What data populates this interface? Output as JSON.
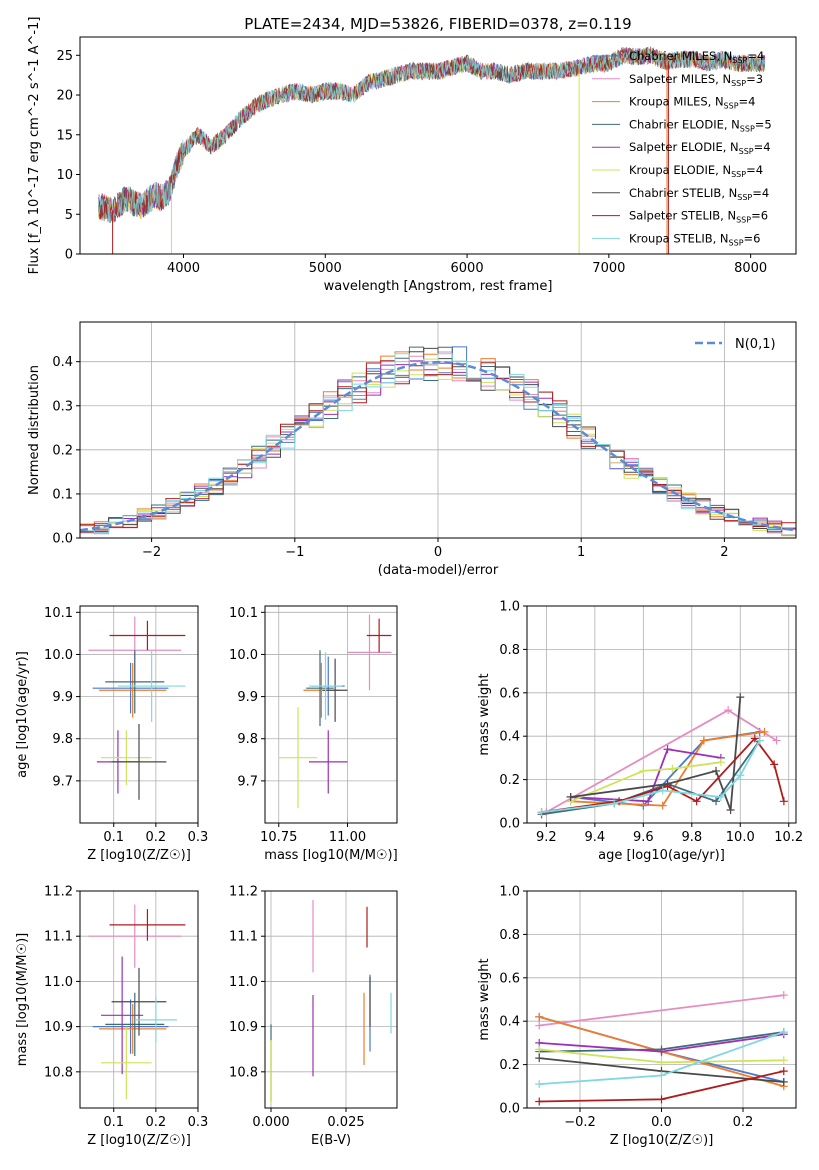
{
  "title": "PLATE=2434, MJD=53826, FIBERID=0378, z=0.119",
  "colors": [
    "#4878cf",
    "#e68cc0",
    "#ee7d2e",
    "#3f6b7a",
    "#9b30b4",
    "#cde35a",
    "#4a4a4a",
    "#b01c1c",
    "#7fd8dd"
  ],
  "models": [
    {
      "name": "Chabrier MILES",
      "nssp": "4"
    },
    {
      "name": "Salpeter MILES",
      "nssp": "3"
    },
    {
      "name": "Kroupa MILES",
      "nssp": "4"
    },
    {
      "name": "Chabrier ELODIE",
      "nssp": "5"
    },
    {
      "name": "Salpeter ELODIE",
      "nssp": "4"
    },
    {
      "name": "Kroupa ELODIE",
      "nssp": "4"
    },
    {
      "name": "Chabrier STELIB",
      "nssp": "4"
    },
    {
      "name": "Salpeter STELIB",
      "nssp": "6"
    },
    {
      "name": "Kroupa STELIB",
      "nssp": "6"
    }
  ],
  "labels": {
    "spec_x": "wavelength [Angstrom, rest frame]",
    "spec_y": "Flux [f_λ 10^-17 erg cm^-2 s^-1 A^-1]",
    "hist_x": "(data-model)/error",
    "hist_y": "Normed distribution",
    "hist_legend": "N(0,1)",
    "age_y": "age  [log10(age/yr)]",
    "z_x": "Z [log10(Z/Z☉)]",
    "mass_x": "mass [log10(M/M☉)]",
    "mw_y": "mass weight",
    "age_x": "age  [log10(age/yr)]",
    "mass_y": "mass [log10(M/M☉)]",
    "ebv_x": "E(B-V)"
  },
  "chart_data": [
    {
      "id": "spectrum",
      "type": "line",
      "xlim": [
        3270,
        8320
      ],
      "ylim": [
        0,
        27.3
      ],
      "xticks": [
        4000,
        5000,
        6000,
        7000,
        8000
      ],
      "yticks": [
        0,
        5,
        10,
        15,
        20,
        25
      ],
      "anchors": [
        [
          3400,
          6
        ],
        [
          3500,
          5.5
        ],
        [
          3600,
          7
        ],
        [
          3700,
          6
        ],
        [
          3800,
          7.5
        ],
        [
          3850,
          7
        ],
        [
          3900,
          8
        ],
        [
          3950,
          11
        ],
        [
          4000,
          13
        ],
        [
          4100,
          15
        ],
        [
          4200,
          13.5
        ],
        [
          4300,
          15
        ],
        [
          4400,
          17
        ],
        [
          4500,
          18.5
        ],
        [
          4600,
          19.5
        ],
        [
          4700,
          20
        ],
        [
          4800,
          20.5
        ],
        [
          4900,
          20
        ],
        [
          5000,
          20.5
        ],
        [
          5100,
          20.5
        ],
        [
          5200,
          20
        ],
        [
          5300,
          21.5
        ],
        [
          5400,
          22
        ],
        [
          5500,
          22.5
        ],
        [
          5600,
          23
        ],
        [
          5700,
          23
        ],
        [
          5800,
          23
        ],
        [
          5900,
          23.5
        ],
        [
          6000,
          24
        ],
        [
          6100,
          23
        ],
        [
          6200,
          23
        ],
        [
          6300,
          22.5
        ],
        [
          6400,
          23
        ],
        [
          6500,
          23
        ],
        [
          6600,
          23
        ],
        [
          6700,
          23.2
        ],
        [
          6800,
          23.5
        ],
        [
          6900,
          24
        ],
        [
          7000,
          24
        ],
        [
          7100,
          25
        ],
        [
          7200,
          24.8
        ],
        [
          7300,
          25
        ],
        [
          7400,
          24.2
        ],
        [
          7500,
          24.5
        ],
        [
          7600,
          24.5
        ],
        [
          7700,
          24
        ],
        [
          7800,
          24.5
        ],
        [
          7900,
          24
        ],
        [
          8000,
          24
        ],
        [
          8100,
          24
        ]
      ],
      "range": [
        3400,
        8100
      ]
    },
    {
      "id": "residuals",
      "type": "step",
      "xlim": [
        -2.5,
        2.5
      ],
      "ylim": [
        0,
        0.49
      ],
      "xticks": [
        -2,
        -1,
        0,
        1,
        2
      ],
      "yticks": [
        0.0,
        0.1,
        0.2,
        0.3,
        0.4
      ],
      "bin": 0.1,
      "sigma": 1,
      "gauss_peak": 0.3989
    },
    {
      "id": "z_age",
      "type": "errorbar",
      "xlim": [
        0.02,
        0.3
      ],
      "ylim": [
        9.6,
        10.115
      ],
      "xticks": [
        0.1,
        0.2,
        0.3
      ],
      "yticks": [
        9.7,
        9.8,
        9.9,
        10.0,
        10.1
      ],
      "points": [
        [
          0.14,
          9.92,
          0.09,
          0.06
        ],
        [
          0.15,
          10.01,
          0.11,
          0.08
        ],
        [
          0.145,
          9.915,
          0.08,
          0.065
        ],
        [
          0.15,
          9.935,
          0.07,
          0.075
        ],
        [
          0.11,
          9.745,
          0.05,
          0.075
        ],
        [
          0.13,
          9.755,
          0.06,
          0.065
        ],
        [
          0.16,
          9.745,
          0.065,
          0.09
        ],
        [
          0.18,
          10.045,
          0.09,
          0.035
        ],
        [
          0.19,
          9.925,
          0.08,
          0.085
        ]
      ]
    },
    {
      "id": "mass_age",
      "type": "errorbar",
      "xlim": [
        10.7,
        11.18
      ],
      "ylim": [
        9.6,
        10.115
      ],
      "xticks": [
        10.75,
        11.0
      ],
      "yticks": [
        9.7,
        9.8,
        9.9,
        10.0,
        10.1
      ],
      "points": [
        [
          10.93,
          9.925,
          0.06,
          0.07
        ],
        [
          11.08,
          10.005,
          0.08,
          0.09
        ],
        [
          10.905,
          9.915,
          0.065,
          0.065
        ],
        [
          10.9,
          9.92,
          0.05,
          0.09
        ],
        [
          10.93,
          9.745,
          0.07,
          0.075
        ],
        [
          10.82,
          9.755,
          0.07,
          0.12
        ],
        [
          10.955,
          9.915,
          0.045,
          0.075
        ],
        [
          11.115,
          10.045,
          0.045,
          0.04
        ],
        [
          10.92,
          9.925,
          0.06,
          0.08
        ]
      ]
    },
    {
      "id": "age_weight",
      "type": "line",
      "xlim": [
        9.12,
        10.23
      ],
      "ylim": [
        0,
        1
      ],
      "xticks": [
        9.2,
        9.4,
        9.6,
        9.8,
        10.0,
        10.2
      ],
      "yticks": [
        0,
        0.2,
        0.4,
        0.6,
        0.8,
        1.0
      ],
      "series": [
        [
          [
            9.3,
            0.12
          ],
          [
            9.6,
            0.08
          ],
          [
            9.85,
            0.38
          ],
          [
            10.08,
            0.42
          ]
        ],
        [
          [
            9.2,
            0.05
          ],
          [
            9.95,
            0.52
          ],
          [
            10.15,
            0.38
          ]
        ],
        [
          [
            9.3,
            0.1
          ],
          [
            9.68,
            0.08
          ],
          [
            9.85,
            0.38
          ],
          [
            10.1,
            0.42
          ]
        ],
        [
          [
            9.18,
            0.04
          ],
          [
            9.48,
            0.09
          ],
          [
            9.7,
            0.18
          ],
          [
            9.9,
            0.1
          ],
          [
            10.08,
            0.38
          ]
        ],
        [
          [
            9.3,
            0.12
          ],
          [
            9.62,
            0.1
          ],
          [
            9.7,
            0.34
          ],
          [
            9.92,
            0.3
          ]
        ],
        [
          [
            9.3,
            0.1
          ],
          [
            9.6,
            0.24
          ],
          [
            9.72,
            0.25
          ],
          [
            9.92,
            0.28
          ]
        ],
        [
          [
            9.3,
            0.12
          ],
          [
            9.7,
            0.18
          ],
          [
            9.9,
            0.24
          ],
          [
            9.96,
            0.06
          ],
          [
            10.0,
            0.58
          ]
        ],
        [
          [
            9.18,
            0.05
          ],
          [
            9.5,
            0.1
          ],
          [
            9.7,
            0.17
          ],
          [
            9.82,
            0.1
          ],
          [
            10.06,
            0.39
          ],
          [
            10.14,
            0.27
          ],
          [
            10.18,
            0.1
          ]
        ],
        [
          [
            9.18,
            0.05
          ],
          [
            9.48,
            0.09
          ],
          [
            9.68,
            0.15
          ],
          [
            9.92,
            0.12
          ],
          [
            10.0,
            0.22
          ],
          [
            10.08,
            0.38
          ]
        ]
      ]
    },
    {
      "id": "z_mass",
      "type": "errorbar",
      "xlim": [
        0.02,
        0.3
      ],
      "ylim": [
        10.72,
        11.2
      ],
      "xticks": [
        0.1,
        0.2,
        0.3
      ],
      "yticks": [
        10.8,
        10.9,
        11.0,
        11.1,
        11.2
      ],
      "points": [
        [
          0.14,
          10.9,
          0.09,
          0.06
        ],
        [
          0.15,
          11.1,
          0.11,
          0.07
        ],
        [
          0.145,
          10.895,
          0.08,
          0.055
        ],
        [
          0.15,
          10.905,
          0.07,
          0.07
        ],
        [
          0.12,
          10.925,
          0.05,
          0.13
        ],
        [
          0.13,
          10.82,
          0.06,
          0.08
        ],
        [
          0.16,
          10.955,
          0.065,
          0.075
        ],
        [
          0.18,
          11.125,
          0.09,
          0.035
        ],
        [
          0.2,
          10.915,
          0.05,
          0.05
        ]
      ]
    },
    {
      "id": "ebv_mass",
      "type": "errorbar",
      "xlim": [
        -0.002,
        0.042
      ],
      "ylim": [
        10.72,
        11.2
      ],
      "xticks": [
        0.0,
        0.025
      ],
      "yticks": [
        10.8,
        10.9,
        11.0,
        11.1,
        11.2
      ],
      "points": [
        [
          0.033,
          10.93,
          0,
          0.085
        ],
        [
          0.014,
          11.1,
          0,
          0.08
        ],
        [
          0.031,
          10.895,
          0,
          0.08
        ],
        [
          0.0,
          10.82,
          0,
          0.085
        ],
        [
          0.014,
          10.88,
          0,
          0.09
        ],
        [
          0.0,
          10.8,
          0,
          0.07
        ],
        [
          0.033,
          10.955,
          0,
          0.055
        ],
        [
          0.032,
          11.12,
          0,
          0.045
        ],
        [
          0.04,
          10.93,
          0,
          0.045
        ]
      ]
    },
    {
      "id": "z_weight",
      "type": "line",
      "xlim": [
        -0.33,
        0.33
      ],
      "ylim": [
        0,
        1
      ],
      "xticks": [
        -0.2,
        0.0,
        0.2
      ],
      "yticks": [
        0,
        0.2,
        0.4,
        0.6,
        0.8,
        1.0
      ],
      "series": [
        [
          [
            -0.3,
            0.42
          ],
          [
            0.0,
            0.26
          ],
          [
            0.3,
            0.12
          ]
        ],
        [
          [
            -0.3,
            0.38
          ],
          [
            0.3,
            0.52
          ]
        ],
        [
          [
            -0.3,
            0.42
          ],
          [
            0.0,
            0.26
          ],
          [
            0.3,
            0.1
          ]
        ],
        [
          [
            -0.3,
            0.26
          ],
          [
            0.0,
            0.27
          ],
          [
            0.3,
            0.35
          ]
        ],
        [
          [
            -0.3,
            0.3
          ],
          [
            0.0,
            0.26
          ],
          [
            0.3,
            0.34
          ]
        ],
        [
          [
            -0.3,
            0.27
          ],
          [
            0.0,
            0.21
          ],
          [
            0.3,
            0.22
          ]
        ],
        [
          [
            -0.3,
            0.23
          ],
          [
            0.0,
            0.17
          ],
          [
            0.3,
            0.12
          ]
        ],
        [
          [
            -0.3,
            0.03
          ],
          [
            0.0,
            0.04
          ],
          [
            0.3,
            0.17
          ]
        ],
        [
          [
            -0.3,
            0.11
          ],
          [
            0.0,
            0.15
          ],
          [
            0.3,
            0.35
          ]
        ]
      ]
    }
  ]
}
